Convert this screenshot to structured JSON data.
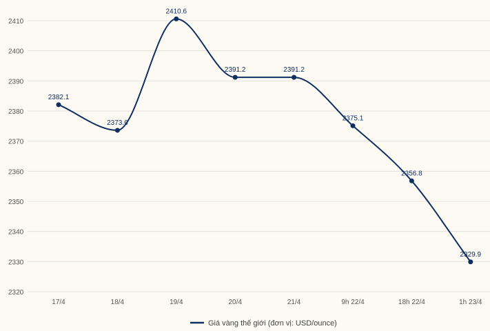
{
  "chart_data": {
    "type": "line",
    "title": "",
    "xlabel": "",
    "ylabel": "",
    "categories": [
      "17/4",
      "18/4",
      "19/4",
      "20/4",
      "21/4",
      "9h 22/4",
      "18h 22/4",
      "1h 23/4"
    ],
    "series": [
      {
        "name": "Giá vàng thế giới (đơn vị: USD/ounce)",
        "values": [
          2382.1,
          2373.6,
          2410.6,
          2391.2,
          2391.2,
          2375.1,
          2356.8,
          2329.9
        ],
        "labels": [
          "2382.1",
          "2373.6",
          "2410.6",
          "2391.2",
          "2391.2",
          "2375.1",
          "2356.8",
          "2329.9"
        ]
      }
    ],
    "yticks": [
      "2320",
      "2330",
      "2340",
      "2350",
      "2360",
      "2370",
      "2380",
      "2390",
      "2400",
      "2410"
    ],
    "ylim": [
      2320,
      2410
    ],
    "grid": true,
    "legend_position": "bottom-center",
    "colors": {
      "line": "#0d2f62",
      "grid": "#e6e2da",
      "background": "#fdfaf4"
    }
  }
}
